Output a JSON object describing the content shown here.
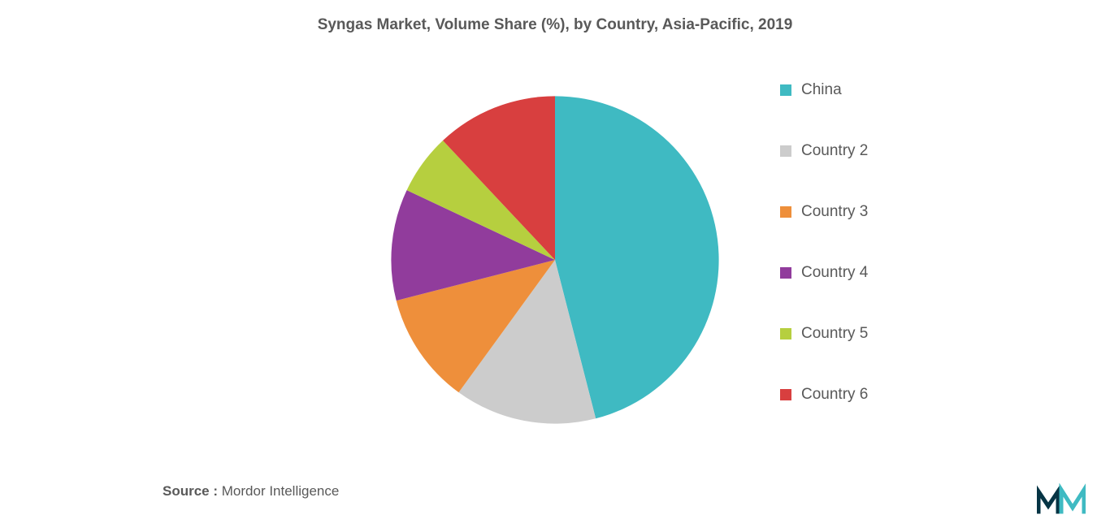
{
  "chart": {
    "title": "Syngas Market, Volume Share (%), by Country, Asia-Pacific, 2019",
    "type": "pie",
    "background_color": "#ffffff",
    "title_fontsize": 19,
    "title_color": "#595959",
    "slices": [
      {
        "label": "China",
        "value": 46,
        "color": "#3fbac2"
      },
      {
        "label": "Country 2",
        "value": 14,
        "color": "#cccccc"
      },
      {
        "label": "Country 3",
        "value": 11,
        "color": "#ee8f3b"
      },
      {
        "label": "Country 4",
        "value": 11,
        "color": "#913c9c"
      },
      {
        "label": "Country 5",
        "value": 6,
        "color": "#b6cf3f"
      },
      {
        "label": "Country 6",
        "value": 12,
        "color": "#d83f3f"
      }
    ],
    "legend_fontsize": 19,
    "legend_color": "#595959",
    "legend_swatch_size": 14
  },
  "source": {
    "label": "Source :",
    "text": " Mordor Intelligence",
    "fontsize": 17,
    "color": "#595959"
  },
  "logo": {
    "color1": "#063444",
    "color2": "#3fbac2"
  }
}
